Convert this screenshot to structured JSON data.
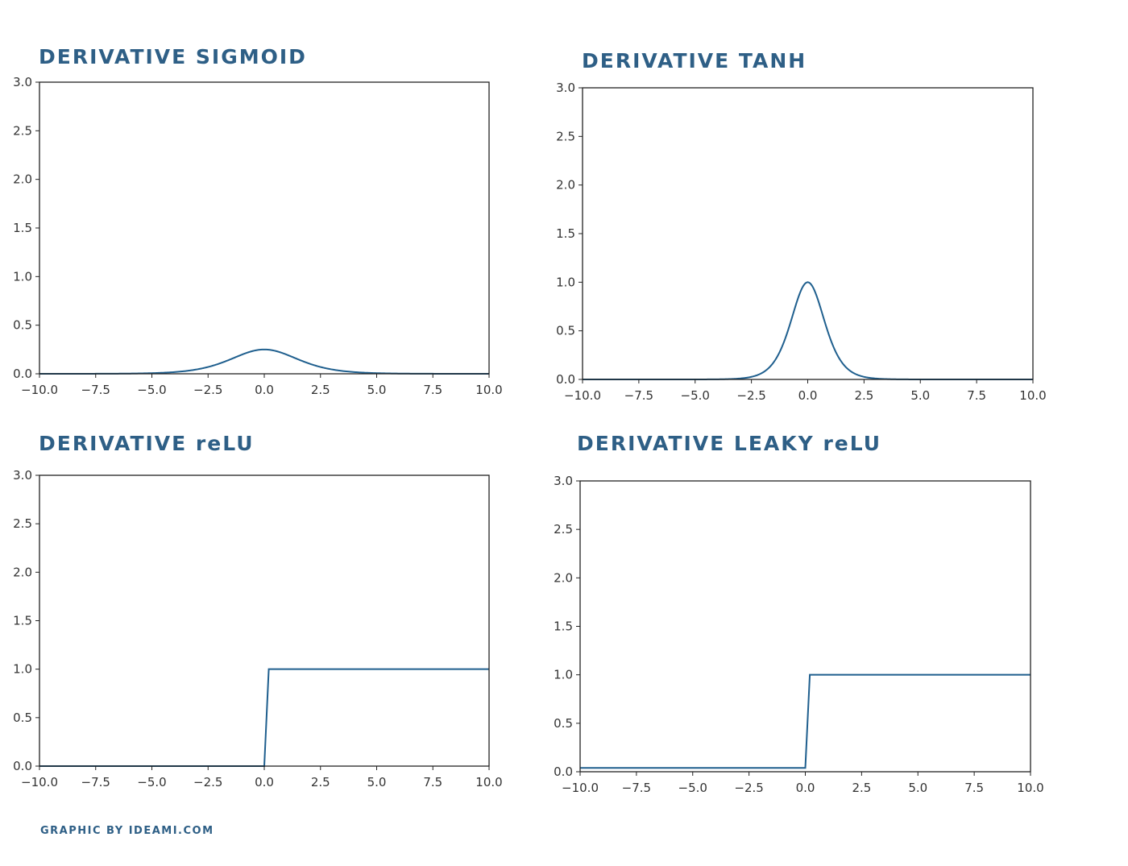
{
  "colors": {
    "title": "#2e5f86",
    "line": "#1f5f8e",
    "axes": "#222222",
    "tick_text": "#333333"
  },
  "footer": {
    "credit": "GRAPHIC BY IDEAMI.COM"
  },
  "chart_data": [
    {
      "type": "line",
      "title": "DERIVATIVE SIGMOID",
      "function": "sigmoid_derivative",
      "xlim": [
        -10,
        10
      ],
      "ylim": [
        0,
        3
      ],
      "xticks": [
        "−10.0",
        "−7.5",
        "−5.0",
        "−2.5",
        "0.0",
        "2.5",
        "5.0",
        "7.5",
        "10.0"
      ],
      "yticks": [
        "0.0",
        "0.5",
        "1.0",
        "1.5",
        "2.0",
        "2.5",
        "3.0"
      ],
      "x": [
        -10,
        -7.5,
        -5,
        -2.5,
        -1,
        0,
        1,
        2.5,
        5,
        7.5,
        10
      ],
      "y": [
        0.0,
        0.001,
        0.007,
        0.07,
        0.197,
        0.25,
        0.197,
        0.07,
        0.007,
        0.001,
        0.0
      ]
    },
    {
      "type": "line",
      "title": "DERIVATIVE TANH",
      "function": "tanh_derivative",
      "xlim": [
        -10,
        10
      ],
      "ylim": [
        0,
        3
      ],
      "xticks": [
        "−10.0",
        "−7.5",
        "−5.0",
        "−2.5",
        "0.0",
        "2.5",
        "5.0",
        "7.5",
        "10.0"
      ],
      "yticks": [
        "0.0",
        "0.5",
        "1.0",
        "1.5",
        "2.0",
        "2.5",
        "3.0"
      ],
      "x": [
        -10,
        -5,
        -2.5,
        -1,
        -0.5,
        0,
        0.5,
        1,
        2.5,
        5,
        10
      ],
      "y": [
        0.0,
        0.0,
        0.03,
        0.42,
        0.79,
        1.0,
        0.79,
        0.42,
        0.03,
        0.0,
        0.0
      ]
    },
    {
      "type": "line",
      "title": "DERIVATIVE reLU",
      "function": "relu_derivative",
      "xlim": [
        -10,
        10
      ],
      "ylim": [
        0,
        3
      ],
      "xticks": [
        "−10.0",
        "−7.5",
        "−5.0",
        "−2.5",
        "0.0",
        "2.5",
        "5.0",
        "7.5",
        "10.0"
      ],
      "yticks": [
        "0.0",
        "0.5",
        "1.0",
        "1.5",
        "2.0",
        "2.5",
        "3.0"
      ],
      "x": [
        -10,
        0,
        0.2,
        10
      ],
      "y": [
        0,
        0,
        1,
        1
      ]
    },
    {
      "type": "line",
      "title": "DERIVATIVE LEAKY reLU",
      "function": "leaky_relu_derivative",
      "xlim": [
        -10,
        10
      ],
      "ylim": [
        0,
        3
      ],
      "xticks": [
        "−10.0",
        "−7.5",
        "−5.0",
        "−2.5",
        "0.0",
        "2.5",
        "5.0",
        "7.5",
        "10.0"
      ],
      "yticks": [
        "0.0",
        "0.5",
        "1.0",
        "1.5",
        "2.0",
        "2.5",
        "3.0"
      ],
      "x": [
        -10,
        0,
        0.2,
        10
      ],
      "y": [
        0.04,
        0.04,
        1,
        1
      ]
    }
  ]
}
